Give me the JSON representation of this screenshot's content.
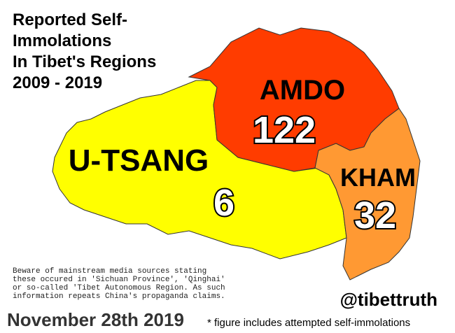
{
  "title": {
    "lines": [
      "Reported Self-",
      "Immolations",
      "In Tibet's Regions",
      "2009 - 2019"
    ]
  },
  "regions": [
    {
      "name": "AMDO",
      "count": 122
    },
    {
      "name": "U-TSANG",
      "count": 6
    },
    {
      "name": "KHAM",
      "count": 32
    }
  ],
  "disclaimer": {
    "lines": [
      "Beware of mainstream media sources stating",
      "these occured in 'Sichuan Province', 'Qinghai'",
      "or so-called 'Tibet Autonomous Region. As such",
      "information repeats China's propaganda claims."
    ]
  },
  "handle": "@tibettruth",
  "date": "November 28th 2019",
  "footnote": "* figure includes attempted self-immolations"
}
